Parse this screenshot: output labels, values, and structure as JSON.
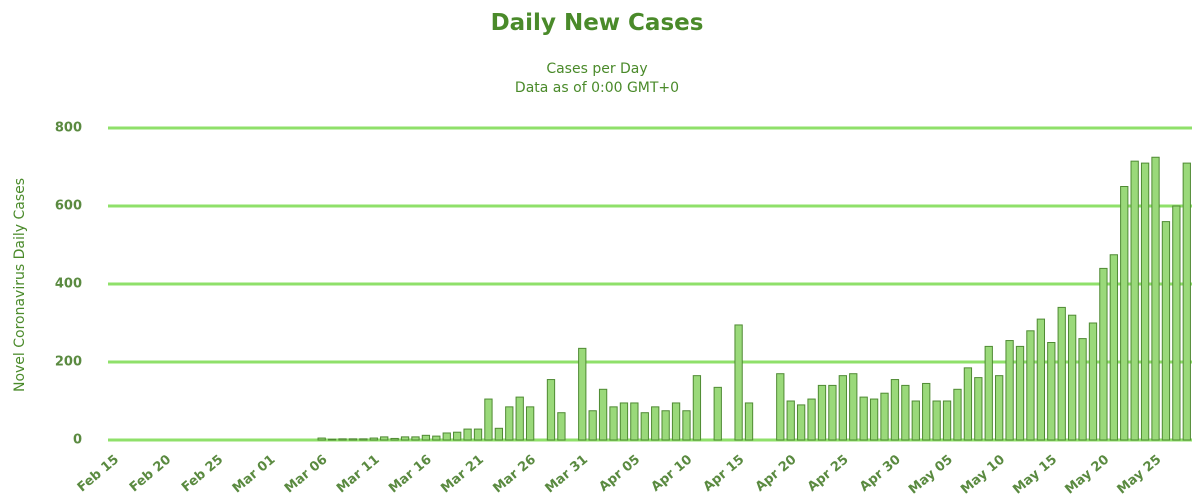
{
  "chart_data": {
    "type": "bar",
    "title": "Daily New Cases",
    "subtitle": [
      "Cases per Day",
      "Data as of 0:00 GMT+0"
    ],
    "y_label": "Novel Coronavirus Daily Cases",
    "categories": [
      "Feb 15",
      null,
      null,
      null,
      null,
      "Feb 20",
      null,
      null,
      null,
      null,
      "Feb 25",
      null,
      null,
      null,
      null,
      "Mar 01",
      null,
      null,
      null,
      null,
      "Mar 06",
      null,
      null,
      null,
      null,
      "Mar 11",
      null,
      null,
      null,
      null,
      "Mar 16",
      null,
      null,
      null,
      null,
      "Mar 21",
      null,
      null,
      null,
      null,
      "Mar 26",
      null,
      null,
      null,
      null,
      "Mar 31",
      null,
      null,
      null,
      null,
      "Apr 05",
      null,
      null,
      null,
      null,
      "Apr 10",
      null,
      null,
      null,
      null,
      "Apr 15",
      null,
      null,
      null,
      null,
      "Apr 20",
      null,
      null,
      null,
      null,
      "Apr 25",
      null,
      null,
      null,
      null,
      "Apr 30",
      null,
      null,
      null,
      null,
      "May 05",
      null,
      null,
      null,
      null,
      "May 10",
      null,
      null,
      null,
      null,
      "May 15",
      null,
      null,
      null,
      null,
      "May 20",
      null,
      null,
      null,
      null,
      "May 25",
      null,
      null,
      null
    ],
    "values": [
      0,
      0,
      0,
      0,
      0,
      0,
      0,
      0,
      0,
      0,
      0,
      0,
      0,
      0,
      0,
      0,
      0,
      0,
      0,
      0,
      5,
      2,
      3,
      3,
      3,
      5,
      8,
      4,
      8,
      8,
      12,
      10,
      18,
      20,
      28,
      28,
      105,
      30,
      85,
      110,
      85,
      0,
      155,
      70,
      0,
      235,
      75,
      130,
      85,
      95,
      95,
      70,
      85,
      75,
      95,
      75,
      165,
      0,
      135,
      0,
      295,
      95,
      0,
      0,
      170,
      100,
      90,
      105,
      140,
      140,
      165,
      170,
      110,
      105,
      120,
      155,
      140,
      100,
      145,
      100,
      100,
      130,
      185,
      160,
      240,
      165,
      255,
      240,
      280,
      310,
      250,
      340,
      320,
      260,
      300,
      440,
      475,
      650,
      715,
      710,
      725,
      560,
      600,
      710
    ],
    "color": "#9ad97a",
    "ylim": [
      0,
      800
    ],
    "yticks": [
      0,
      200,
      400,
      600,
      800
    ],
    "grid": true
  }
}
